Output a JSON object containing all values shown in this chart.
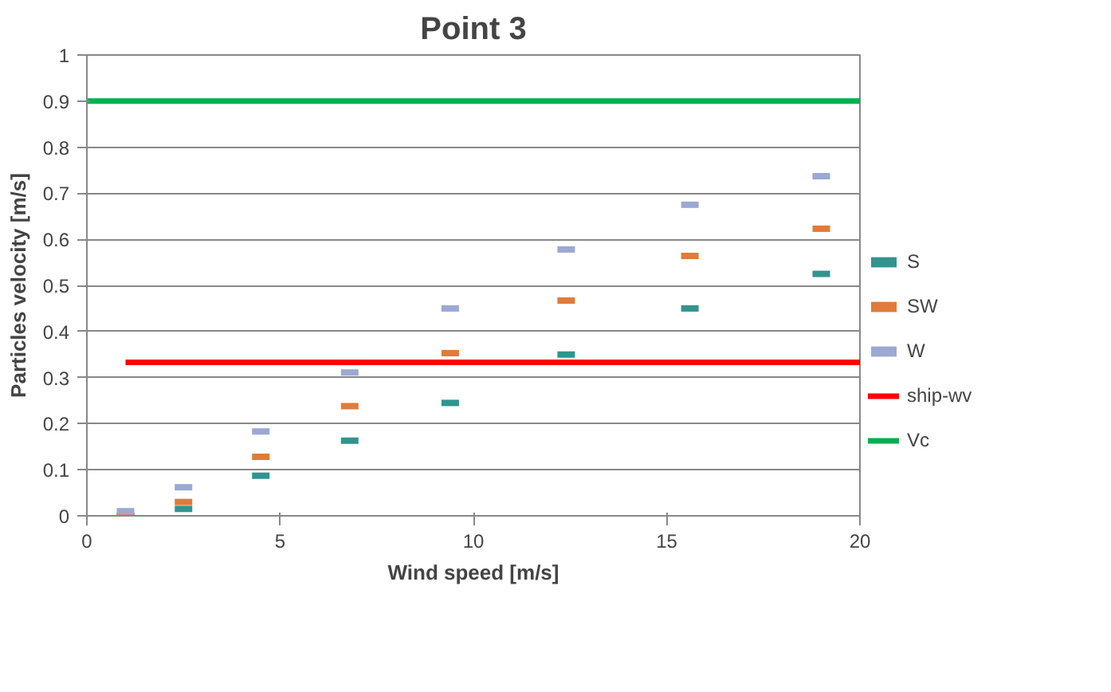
{
  "chart_data": {
    "type": "scatter",
    "title": "Point 3",
    "xlabel": "Wind speed [m/s]",
    "ylabel": "Particles velocity [m/s]",
    "x": [
      1.0,
      2.5,
      4.5,
      6.8,
      9.4,
      12.4,
      15.6,
      19.0
    ],
    "series": [
      {
        "name": "S",
        "color": "#31948f",
        "values": [
          null,
          0.015,
          0.087,
          0.163,
          0.245,
          0.35,
          0.45,
          0.525
        ]
      },
      {
        "name": "SW",
        "color": "#e07b39",
        "values": [
          0.0,
          0.03,
          0.128,
          0.238,
          0.353,
          0.467,
          0.564,
          0.623
        ]
      },
      {
        "name": "W",
        "color": "#9ba9d3",
        "values": [
          0.01,
          0.062,
          0.183,
          0.311,
          0.45,
          0.578,
          0.675,
          0.737
        ]
      },
      {
        "name": "ship-wv",
        "type": "line",
        "color": "#ff0000",
        "x": [
          1.0,
          20.0
        ],
        "values": [
          0.333,
          0.333
        ]
      },
      {
        "name": "Vc",
        "type": "line",
        "color": "#00b050",
        "x": [
          0.0,
          20.0
        ],
        "values": [
          0.9,
          0.9
        ]
      }
    ],
    "xlim": [
      0,
      20
    ],
    "xticks": [
      0,
      5,
      10,
      15,
      20
    ],
    "ylim": [
      0,
      1
    ],
    "yticks": [
      0,
      {
        "value": 0.1,
        "label": "0.1"
      },
      {
        "value": 0.2,
        "label": "0.2"
      },
      {
        "value": 0.3,
        "label": "0.3"
      },
      {
        "value": 0.4,
        "label": "0.4"
      },
      {
        "value": 0.5,
        "label": "0.5"
      },
      {
        "value": 0.6,
        "label": "0.6"
      },
      {
        "value": 0.7,
        "label": "0.7"
      },
      {
        "value": 0.8,
        "label": "0.8"
      },
      {
        "value": 0.9,
        "label": "0.9"
      },
      1
    ],
    "grid": "y",
    "legend": "right"
  }
}
